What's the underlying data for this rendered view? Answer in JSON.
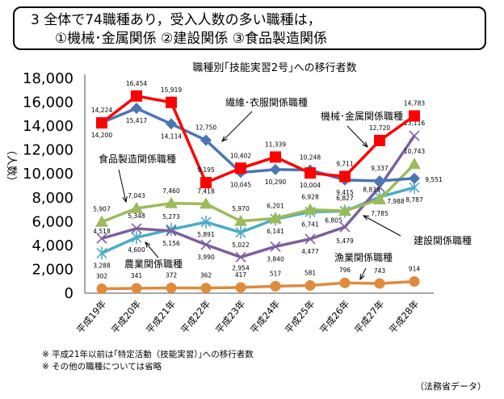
{
  "headline": {
    "line1": "3  全体で74職種あり，受入人数の多い職種は，",
    "line2": "①機械･金属関係  ②建設関係  ③食品製造関係"
  },
  "notes": [
    "※  平成21年以前は｢特定活動（技能実習）｣への移行者数",
    "※  その他の職種については省略"
  ],
  "source": "（法務省データ）",
  "chart_data": {
    "type": "line",
    "title": "職種別｢技能実習2号｣への移行者数",
    "ylabel": "（人数）",
    "xlabel": "",
    "ylim": [
      0,
      18000
    ],
    "yticks": [
      "0",
      "2,000",
      "4,000",
      "6,000",
      "8,000",
      "10,000",
      "12,000",
      "14,000",
      "16,000",
      "18,000"
    ],
    "grid": false,
    "categories": [
      "平成19年",
      "平成20年",
      "平成21年",
      "平成22年",
      "平成23年",
      "平成24年",
      "平成25年",
      "平成26年",
      "平成27年",
      "平成28年"
    ],
    "series": [
      {
        "name": "機械･金属関係職種",
        "color": "#ff0000",
        "marker": "square",
        "values": [
          14200,
          16454,
          15919,
          9195,
          10402,
          11339,
          10004,
          9711,
          12720,
          14783
        ],
        "labels": [
          "14,200",
          "16,454",
          "15,919",
          "9,195",
          "10,402",
          "11,339",
          "10,004",
          "9,711",
          "12,720",
          "14,783"
        ]
      },
      {
        "name": "繊維･衣服関係職種",
        "color": "#4a76b2",
        "marker": "diamond",
        "values": [
          14224,
          15417,
          14114,
          12750,
          10045,
          10290,
          10248,
          9415,
          9337,
          9551
        ],
        "labels": [
          "14,224",
          "15,417",
          "14,114",
          "12,750",
          "10,045",
          "10,290",
          "10,248",
          "9,415",
          "9,337",
          "9,551"
        ]
      },
      {
        "name": "食品製造関係職種",
        "color": "#9bbb59",
        "marker": "triangle",
        "values": [
          5907,
          7043,
          7460,
          7418,
          5970,
          6201,
          6928,
          6827,
          7785,
          10743
        ],
        "labels": [
          "5,907",
          "7,043",
          "7,460",
          "7,418",
          "5,970",
          "6,201",
          "6,928",
          "6,827",
          "7,785",
          "10,743"
        ]
      },
      {
        "name": "建設関係職種",
        "color": "#7d5fa0",
        "marker": "x",
        "values": [
          4518,
          5348,
          5156,
          3990,
          2954,
          3840,
          4477,
          5479,
          8839,
          13116
        ],
        "labels": [
          "4,518",
          "5,348",
          "5,156",
          "3,990",
          "2,954",
          "3,840",
          "4,477",
          "5,479",
          "8,839",
          "13,116"
        ]
      },
      {
        "name": "農業関係職種",
        "color": "#4bacc6",
        "marker": "star",
        "values": [
          3288,
          4600,
          5273,
          5891,
          5022,
          6141,
          6741,
          6805,
          7988,
          8787
        ],
        "labels": [
          "3,288",
          "4,600",
          "5,273",
          "5,891",
          "5,022",
          "6,141",
          "6,741",
          "6,805",
          "7,988",
          "8,787"
        ]
      },
      {
        "name": "漁業関係職種",
        "color": "#e08a3c",
        "marker": "circle",
        "values": [
          302,
          341,
          372,
          362,
          417,
          517,
          581,
          796,
          743,
          914
        ],
        "labels": [
          "302",
          "341",
          "372",
          "362",
          "417",
          "517",
          "581",
          "796",
          "743",
          "914"
        ]
      }
    ]
  }
}
